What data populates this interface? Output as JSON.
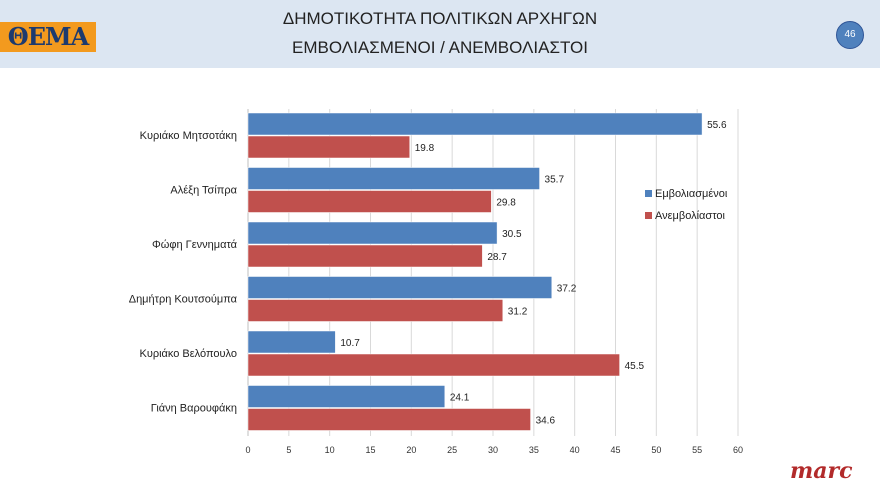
{
  "header": {
    "logo": "ΘΕΜΑ",
    "title_line1": "ΔΗΜΟΤΙΚΟΤΗΤΑ ΠΟΛΙΤΙΚΩΝ ΑΡΧΗΓΩΝ",
    "title_line2": "ΕΜΒΟΛΙΑΣΜΕΝΟΙ / ΑΝΕΜΒΟΛΙΑΣΤΟΙ",
    "page_number": "46"
  },
  "footer": {
    "brand": "marc"
  },
  "chart_data": {
    "type": "bar",
    "orientation": "horizontal",
    "categories": [
      "Κυριάκο Μητσοτάκη",
      "Αλέξη Τσίπρα",
      "Φώφη Γεννηματά",
      "Δημήτρη Κουτσούμπα",
      "Κυριάκο Βελόπουλο",
      "Γιάνη Βαρουφάκη"
    ],
    "series": [
      {
        "name": "Εμβολιασμένοι",
        "color": "#4f81bd",
        "values": [
          55.6,
          35.7,
          30.5,
          37.2,
          10.7,
          24.1
        ]
      },
      {
        "name": "Ανεμβολίαστοι",
        "color": "#c0504d",
        "values": [
          19.8,
          29.8,
          28.7,
          31.2,
          45.5,
          34.6
        ]
      }
    ],
    "xlim": [
      0,
      60
    ],
    "xticks": [
      "0",
      "5",
      "10",
      "15",
      "20",
      "25",
      "30",
      "35",
      "40",
      "45",
      "50",
      "55",
      "60"
    ],
    "grid": true,
    "legend": "right"
  }
}
